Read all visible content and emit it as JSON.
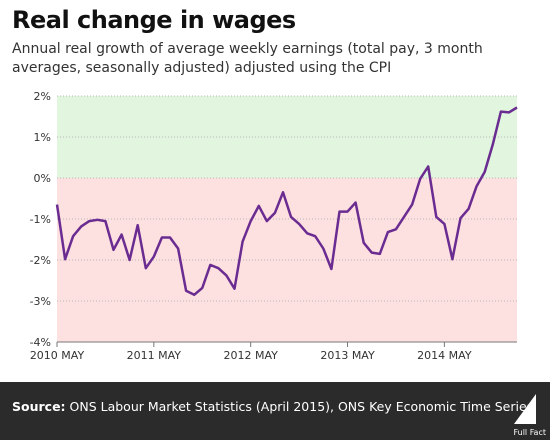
{
  "header": {
    "title": "Real change in wages",
    "subtitle": "Annual real growth of average weekly earnings (total pay, 3 month averages, seasonally adjusted) adjusted using the CPI"
  },
  "footer": {
    "source_label": "Source:",
    "source_text": " ONS Labour Market Statistics (April 2015), ONS Key Economic Time Series",
    "logo_text": "Full Fact"
  },
  "colors": {
    "line": "#6a2c91",
    "positive_zone": "#e2f5de",
    "negative_zone": "#fde0e0",
    "footer_bg": "#2b2b2b"
  },
  "chart_data": {
    "type": "line",
    "title": "Real change in wages",
    "ylabel": "",
    "xlabel": "",
    "ylim": [
      -4,
      2
    ],
    "yticks": [
      2,
      1,
      0,
      -1,
      -2,
      -3,
      -4
    ],
    "ytick_labels": [
      "2%",
      "1%",
      "0%",
      "-1%",
      "-2%",
      "-3%",
      "-4%"
    ],
    "xticks": [
      "2010 MAY",
      "2011 MAY",
      "2012 MAY",
      "2013 MAY",
      "2014 MAY"
    ],
    "grid": true,
    "series": [
      {
        "values": [
          -0.65,
          -1.98,
          -1.42,
          -1.18,
          -1.05,
          -1.02,
          -1.05,
          -1.75,
          -1.38,
          -2.0,
          -1.15,
          -2.2,
          -1.92,
          -1.45,
          -1.45,
          -1.72,
          -2.75,
          -2.85,
          -2.68,
          -2.12,
          -2.2,
          -2.38,
          -2.7,
          -1.55,
          -1.05,
          -0.68,
          -1.05,
          -0.85,
          -0.35,
          -0.95,
          -1.12,
          -1.35,
          -1.42,
          -1.72,
          -2.22,
          -0.82,
          -0.82,
          -0.6,
          -1.58,
          -1.82,
          -1.85,
          -1.32,
          -1.25,
          -0.95,
          -0.65,
          -0.02,
          0.28,
          -0.95,
          -1.12,
          -1.98,
          -0.98,
          -0.75,
          -0.2,
          0.15,
          0.82,
          1.62,
          1.6,
          1.72
        ]
      }
    ]
  }
}
